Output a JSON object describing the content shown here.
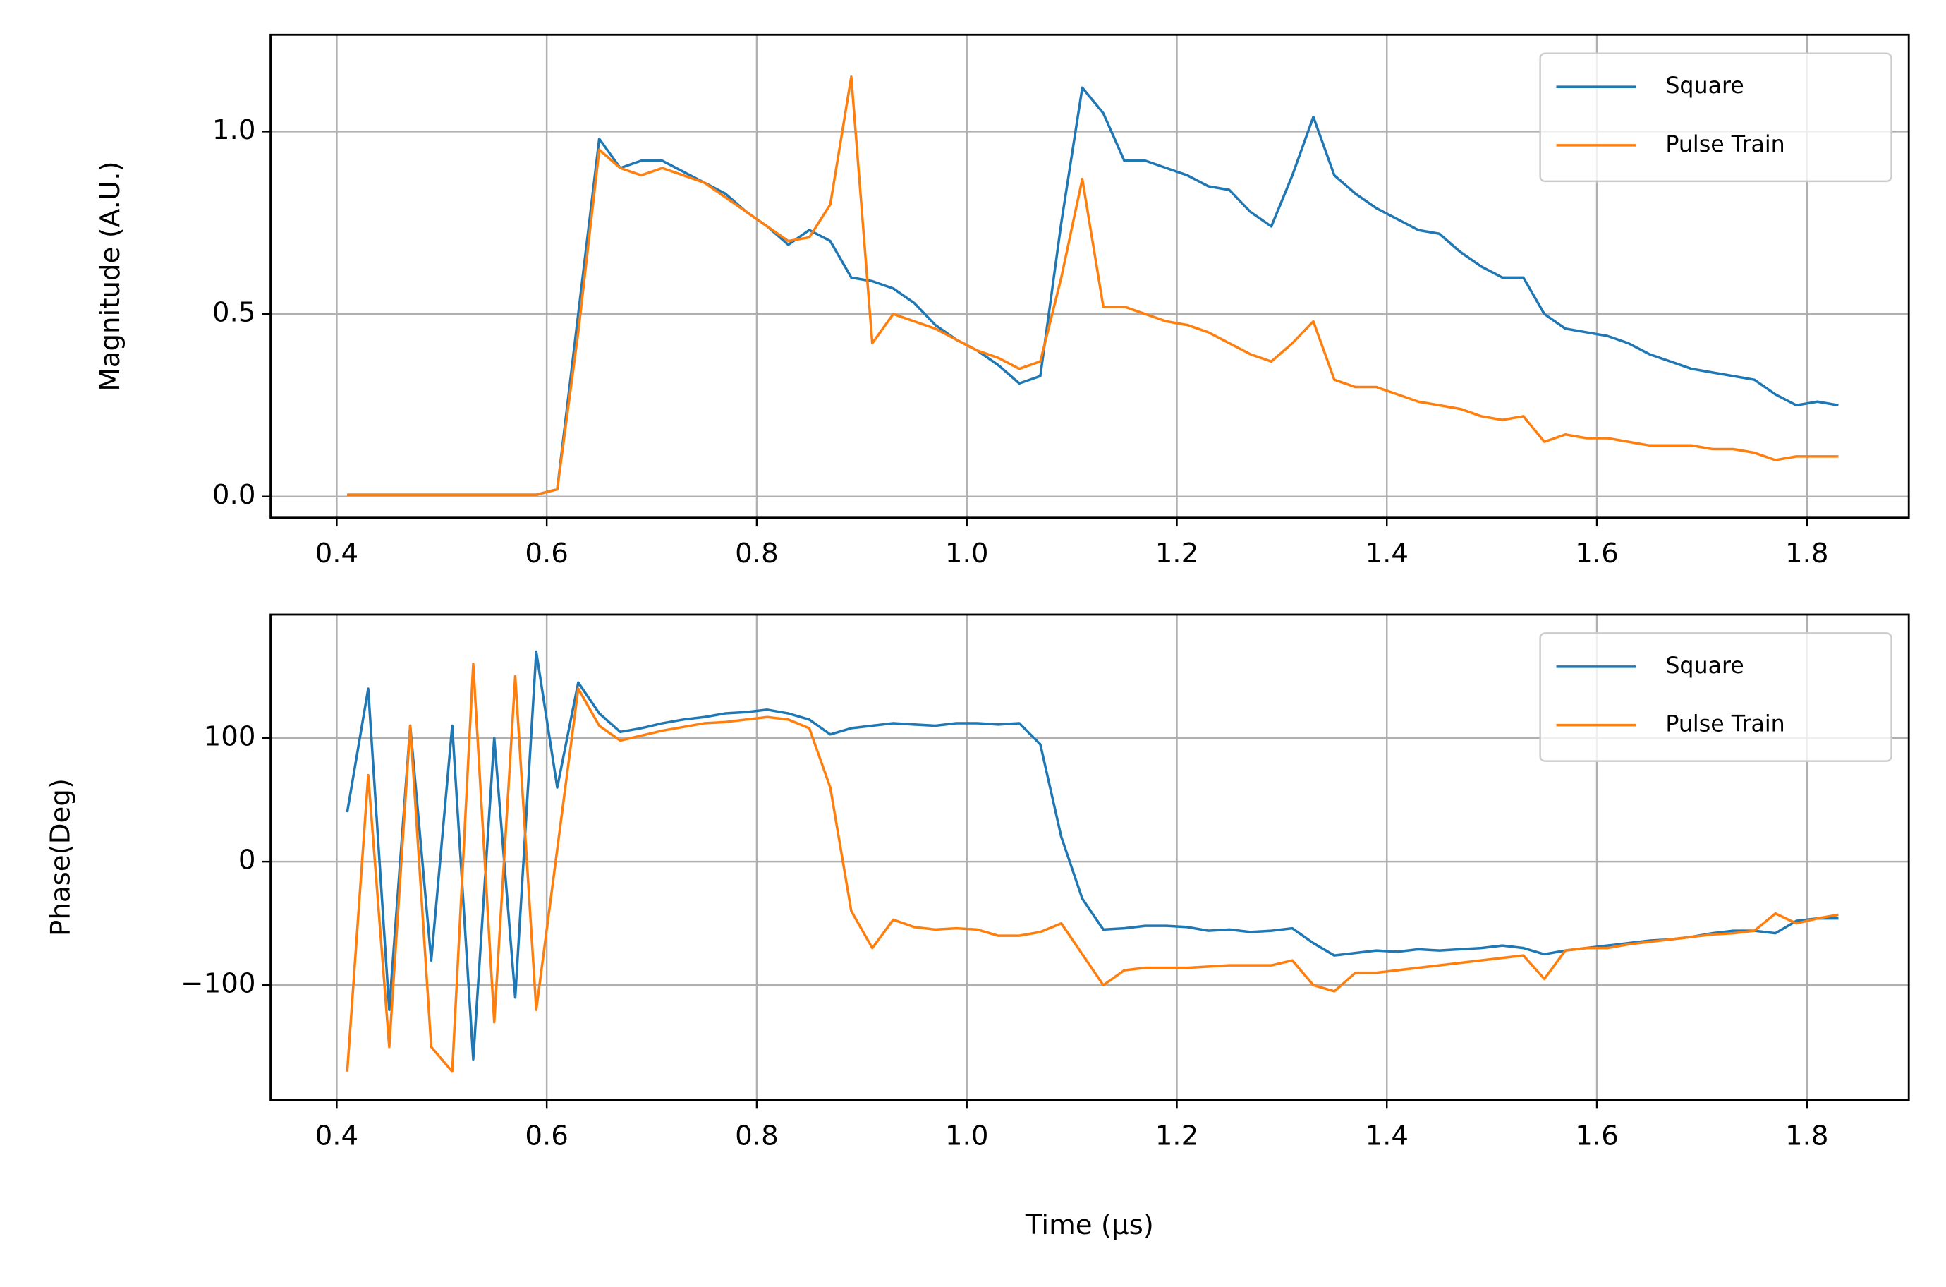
{
  "chart_data": [
    {
      "type": "line",
      "ylabel": "Magnitude (A.U.)",
      "x": [
        0.41,
        0.43,
        0.45,
        0.47,
        0.49,
        0.51,
        0.53,
        0.55,
        0.57,
        0.59,
        0.61,
        0.63,
        0.65,
        0.67,
        0.69,
        0.71,
        0.73,
        0.75,
        0.77,
        0.79,
        0.81,
        0.83,
        0.85,
        0.87,
        0.89,
        0.91,
        0.93,
        0.95,
        0.97,
        0.99,
        1.01,
        1.03,
        1.05,
        1.07,
        1.09,
        1.11,
        1.13,
        1.15,
        1.17,
        1.19,
        1.21,
        1.23,
        1.25,
        1.27,
        1.29,
        1.31,
        1.33,
        1.35,
        1.37,
        1.39,
        1.41,
        1.43,
        1.45,
        1.47,
        1.49,
        1.51,
        1.53,
        1.55,
        1.57,
        1.59,
        1.61,
        1.63,
        1.65,
        1.67,
        1.69,
        1.71,
        1.73,
        1.75,
        1.77,
        1.79,
        1.81,
        1.83
      ],
      "series": [
        {
          "name": "Square",
          "color": "#1f77b4",
          "values": [
            0.005,
            0.005,
            0.005,
            0.005,
            0.005,
            0.005,
            0.005,
            0.005,
            0.005,
            0.005,
            0.02,
            0.5,
            0.98,
            0.9,
            0.92,
            0.92,
            0.89,
            0.86,
            0.83,
            0.78,
            0.74,
            0.69,
            0.73,
            0.7,
            0.6,
            0.59,
            0.57,
            0.53,
            0.47,
            0.43,
            0.4,
            0.36,
            0.31,
            0.33,
            0.75,
            1.12,
            1.05,
            0.92,
            0.92,
            0.9,
            0.88,
            0.85,
            0.84,
            0.78,
            0.74,
            0.88,
            1.04,
            0.88,
            0.83,
            0.79,
            0.76,
            0.73,
            0.72,
            0.67,
            0.63,
            0.6,
            0.6,
            0.5,
            0.46,
            0.45,
            0.44,
            0.42,
            0.39,
            0.37,
            0.35,
            0.34,
            0.33,
            0.32,
            0.28,
            0.25,
            0.26,
            0.25
          ]
        },
        {
          "name": "Pulse Train",
          "color": "#ff7f0e",
          "values": [
            0.005,
            0.005,
            0.005,
            0.005,
            0.005,
            0.005,
            0.005,
            0.005,
            0.005,
            0.005,
            0.02,
            0.45,
            0.95,
            0.9,
            0.88,
            0.9,
            0.88,
            0.86,
            0.82,
            0.78,
            0.74,
            0.7,
            0.71,
            0.8,
            1.15,
            0.42,
            0.5,
            0.48,
            0.46,
            0.43,
            0.4,
            0.38,
            0.35,
            0.37,
            0.6,
            0.87,
            0.52,
            0.52,
            0.5,
            0.48,
            0.47,
            0.45,
            0.42,
            0.39,
            0.37,
            0.42,
            0.48,
            0.32,
            0.3,
            0.3,
            0.28,
            0.26,
            0.25,
            0.24,
            0.22,
            0.21,
            0.22,
            0.15,
            0.17,
            0.16,
            0.16,
            0.15,
            0.14,
            0.14,
            0.14,
            0.13,
            0.13,
            0.12,
            0.1,
            0.11,
            0.11,
            0.11
          ]
        }
      ],
      "xlim": [
        0.337,
        1.897
      ],
      "ylim": [
        -0.058,
        1.265
      ],
      "xticks": [
        0.4,
        0.6,
        0.8,
        {
          "value": 1,
          "label": "1.0"
        },
        1.2,
        1.4,
        1.6,
        1.8
      ],
      "yticks": [
        {
          "value": 0,
          "label": "0.0"
        },
        {
          "value": 0.5,
          "label": "0.5"
        },
        {
          "value": 1,
          "label": "1.0"
        }
      ],
      "grid": true,
      "legend": "upper right"
    },
    {
      "type": "line",
      "ylabel": "Phase(Deg)",
      "xlabel": "Time (μs)",
      "x": [
        0.41,
        0.43,
        0.45,
        0.47,
        0.49,
        0.51,
        0.53,
        0.55,
        0.57,
        0.59,
        0.61,
        0.63,
        0.65,
        0.67,
        0.69,
        0.71,
        0.73,
        0.75,
        0.77,
        0.79,
        0.81,
        0.83,
        0.85,
        0.87,
        0.89,
        0.91,
        0.93,
        0.95,
        0.97,
        0.99,
        1.01,
        1.03,
        1.05,
        1.07,
        1.09,
        1.11,
        1.13,
        1.15,
        1.17,
        1.19,
        1.21,
        1.23,
        1.25,
        1.27,
        1.29,
        1.31,
        1.33,
        1.35,
        1.37,
        1.39,
        1.41,
        1.43,
        1.45,
        1.47,
        1.49,
        1.51,
        1.53,
        1.55,
        1.57,
        1.59,
        1.61,
        1.63,
        1.65,
        1.67,
        1.69,
        1.71,
        1.73,
        1.75,
        1.77,
        1.79,
        1.81,
        1.83
      ],
      "series": [
        {
          "name": "Square",
          "color": "#1f77b4",
          "values": [
            40,
            140,
            -120,
            110,
            -80,
            110,
            -160,
            100,
            -110,
            170,
            60,
            145,
            120,
            105,
            108,
            112,
            115,
            117,
            120,
            121,
            123,
            120,
            115,
            103,
            108,
            110,
            112,
            111,
            110,
            112,
            112,
            111,
            112,
            95,
            20,
            -30,
            -55,
            -54,
            -52,
            -52,
            -53,
            -56,
            -55,
            -57,
            -56,
            -54,
            -66,
            -76,
            -74,
            -72,
            -73,
            -71,
            -72,
            -71,
            -70,
            -68,
            -70,
            -75,
            -72,
            -70,
            -68,
            -66,
            -64,
            -63,
            -61,
            -58,
            -56,
            -56,
            -58,
            -48,
            -46,
            -46
          ]
        },
        {
          "name": "Pulse Train",
          "color": "#ff7f0e",
          "values": [
            -170,
            70,
            -150,
            110,
            -150,
            -170,
            160,
            -130,
            150,
            -120,
            10,
            140,
            110,
            98,
            102,
            106,
            109,
            112,
            113,
            115,
            117,
            115,
            108,
            60,
            -40,
            -70,
            -47,
            -53,
            -55,
            -54,
            -55,
            -60,
            -60,
            -57,
            -50,
            -75,
            -100,
            -88,
            -86,
            -86,
            -86,
            -85,
            -84,
            -84,
            -84,
            -80,
            -100,
            -105,
            -90,
            -90,
            -88,
            -86,
            -84,
            -82,
            -80,
            -78,
            -76,
            -95,
            -72,
            -70,
            -70,
            -67,
            -65,
            -63,
            -61,
            -59,
            -58,
            -56,
            -42,
            -50,
            -46,
            -43
          ]
        }
      ],
      "xlim": [
        0.337,
        1.897
      ],
      "ylim": [
        -193,
        200
      ],
      "xticks": [
        0.4,
        0.6,
        0.8,
        {
          "value": 1,
          "label": "1.0"
        },
        1.2,
        1.4,
        1.6,
        1.8
      ],
      "yticks": [
        {
          "value": -100,
          "label": "−100"
        },
        0,
        100
      ],
      "grid": true,
      "legend": "upper right"
    }
  ]
}
